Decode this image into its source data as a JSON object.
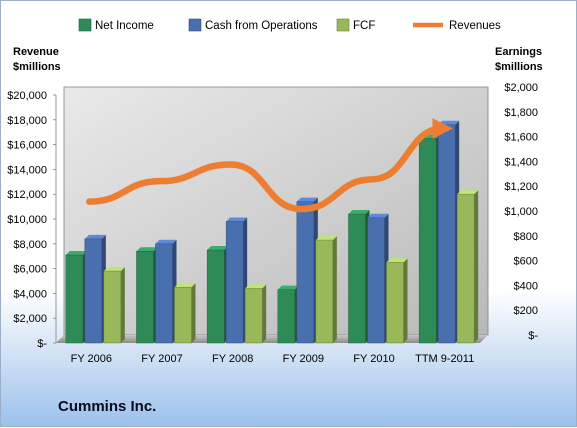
{
  "chart_data": {
    "type": "bar",
    "categories": [
      "FY 2006",
      "FY 2007",
      "FY 2008",
      "FY 2009",
      "FY 2010",
      "TTM 9-2011"
    ],
    "series": [
      {
        "name": "Net Income",
        "axis": "right",
        "color": "#2e8b57",
        "values": [
          710,
          740,
          750,
          430,
          1040,
          1650
        ]
      },
      {
        "name": "Cash from Operations",
        "axis": "right",
        "color": "#4a6fae",
        "values": [
          840,
          800,
          980,
          1140,
          1010,
          1760
        ]
      },
      {
        "name": "FCF",
        "axis": "right",
        "color": "#98b85a",
        "values": [
          580,
          450,
          440,
          830,
          650,
          1200
        ]
      }
    ],
    "line_series": {
      "name": "Revenues",
      "axis": "left",
      "color": "#ed7d31",
      "values": [
        11400,
        13050,
        14400,
        10800,
        13200,
        17300
      ]
    },
    "left_axis": {
      "title_line1": "Revenue",
      "title_line2": "$millions",
      "ylim": [
        0,
        20000
      ],
      "tick_labels": [
        "$-",
        "$2,000",
        "$4,000",
        "$6,000",
        "$8,000",
        "$10,000",
        "$12,000",
        "$14,000",
        "$16,000",
        "$18,000",
        "$20,000"
      ]
    },
    "right_axis": {
      "title_line1": "Earnings",
      "title_line2": "$millions",
      "ylim": [
        0,
        2000
      ],
      "tick_labels": [
        "$-",
        "$200",
        "$400",
        "$600",
        "$800",
        "$1,000",
        "$1,200",
        "$1,400",
        "$1,600",
        "$1,800",
        "$2,000"
      ]
    },
    "legend_position": "top",
    "grid": false,
    "plot_background": "gradient gray"
  },
  "company_name": "Cummins Inc."
}
